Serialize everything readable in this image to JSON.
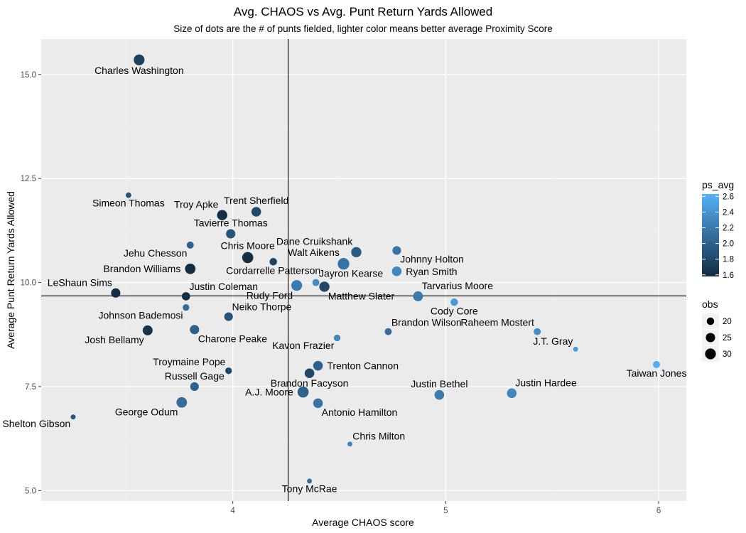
{
  "chart_data": {
    "type": "scatter",
    "title": "Avg. CHAOS vs Avg. Punt Return Yards Allowed",
    "subtitle": "Size of dots are the # of punts fielded, lighter color means better average Proximity Score",
    "xlabel": "Average CHAOS score",
    "ylabel": "Average Punt Return Yards Allowed",
    "xlim": [
      3.1,
      6.13
    ],
    "ylim": [
      4.75,
      15.85
    ],
    "x_ticks": [
      "4",
      "5",
      "6"
    ],
    "x_tick_values": [
      4,
      5,
      6
    ],
    "y_ticks": [
      "5.0",
      "7.5",
      "10.0",
      "12.5",
      "15.0"
    ],
    "y_tick_values": [
      5.0,
      7.5,
      10.0,
      12.5,
      15.0
    ],
    "reference_lines": {
      "x": 4.26,
      "y": 9.68
    },
    "grid": true,
    "colors": {
      "panel": "#ebebeb",
      "grid_major": "#ffffff",
      "grid_minor": "#f3f3f3",
      "color_low": "#132B43",
      "color_high": "#56B1F7"
    },
    "legend": {
      "position": "right",
      "color_title": "ps_avg",
      "color_ticks": [
        "2.6",
        "2.4",
        "2.2",
        "2.0",
        "1.8",
        "1.6"
      ],
      "color_tick_values": [
        2.6,
        2.4,
        2.2,
        2.0,
        1.8,
        1.6
      ],
      "color_range": [
        1.58,
        2.63
      ],
      "size_title": "obs",
      "size_ticks": [
        "20",
        "25",
        "30"
      ],
      "size_tick_values": [
        20,
        25,
        30
      ]
    },
    "points": [
      {
        "name": "Charles Washington",
        "x": 3.56,
        "y": 15.35,
        "obs": 30,
        "ps_avg": 1.75,
        "label_pos": "below"
      },
      {
        "name": "Simeon Thomas",
        "x": 3.51,
        "y": 12.1,
        "obs": 16,
        "ps_avg": 1.9,
        "label_pos": "below"
      },
      {
        "name": "Troy Apke",
        "x": 3.95,
        "y": 11.62,
        "obs": 28,
        "ps_avg": 1.6,
        "label_pos": "above-left"
      },
      {
        "name": "Trent Sherfield",
        "x": 4.11,
        "y": 11.7,
        "obs": 26,
        "ps_avg": 1.8,
        "label_pos": "above"
      },
      {
        "name": "Tavierre Thomas",
        "x": 3.99,
        "y": 11.17,
        "obs": 25,
        "ps_avg": 1.9,
        "label_pos": "above"
      },
      {
        "name": "Jehu Chesson",
        "x": 3.8,
        "y": 10.9,
        "obs": 19,
        "ps_avg": 2.0,
        "label_pos": "below-left"
      },
      {
        "name": "Chris Moore",
        "x": 4.07,
        "y": 10.6,
        "obs": 31,
        "ps_avg": 1.6,
        "label_pos": "above"
      },
      {
        "name": "Cordarrelle Patterson",
        "x": 4.19,
        "y": 10.5,
        "obs": 20,
        "ps_avg": 1.75,
        "label_pos": "below"
      },
      {
        "name": "Brandon Williams",
        "x": 3.8,
        "y": 10.33,
        "obs": 29,
        "ps_avg": 1.6,
        "label_pos": "left"
      },
      {
        "name": "Dane Cruikshank",
        "x": 4.58,
        "y": 10.73,
        "obs": 28,
        "ps_avg": 1.95,
        "label_pos": "above-left"
      },
      {
        "name": "Walt Aikens",
        "x": 4.52,
        "y": 10.45,
        "obs": 33,
        "ps_avg": 2.15,
        "label_pos": "above-left"
      },
      {
        "name": "Johnny Holton",
        "x": 4.77,
        "y": 10.77,
        "obs": 23,
        "ps_avg": 2.15,
        "label_pos": "below-right"
      },
      {
        "name": "Ryan Smith",
        "x": 4.77,
        "y": 10.27,
        "obs": 26,
        "ps_avg": 2.3,
        "label_pos": "right"
      },
      {
        "name": "Jayron Kearse",
        "x": 4.39,
        "y": 10.0,
        "obs": 19,
        "ps_avg": 2.35,
        "label_pos": "above-right"
      },
      {
        "name": "Rudy Ford",
        "x": 4.3,
        "y": 9.93,
        "obs": 30,
        "ps_avg": 2.2,
        "label_pos": "below-left"
      },
      {
        "name": "Matthew Slater",
        "x": 4.43,
        "y": 9.9,
        "obs": 28,
        "ps_avg": 1.8,
        "label_pos": "below-right"
      },
      {
        "name": "LeShaun Sims",
        "x": 3.45,
        "y": 9.75,
        "obs": 25,
        "ps_avg": 1.6,
        "label_pos": "above-left"
      },
      {
        "name": "Justin Coleman",
        "x": 3.78,
        "y": 9.67,
        "obs": 22,
        "ps_avg": 1.6,
        "label_pos": "above-right"
      },
      {
        "name": "Tarvarius Moore",
        "x": 4.87,
        "y": 9.67,
        "obs": 27,
        "ps_avg": 2.2,
        "label_pos": "above-right"
      },
      {
        "name": "Johnson Bademosi",
        "x": 3.78,
        "y": 9.4,
        "obs": 18,
        "ps_avg": 2.1,
        "label_pos": "below-left"
      },
      {
        "name": "Neiko Thorpe",
        "x": 3.98,
        "y": 9.18,
        "obs": 23,
        "ps_avg": 1.9,
        "label_pos": "above-right"
      },
      {
        "name": "Cody Core",
        "x": 5.04,
        "y": 9.53,
        "obs": 20,
        "ps_avg": 2.45,
        "label_pos": "below"
      },
      {
        "name": "Josh Bellamy",
        "x": 3.6,
        "y": 8.85,
        "obs": 27,
        "ps_avg": 1.65,
        "label_pos": "below-left"
      },
      {
        "name": "Charone Peake",
        "x": 3.82,
        "y": 8.87,
        "obs": 25,
        "ps_avg": 2.0,
        "label_pos": "below-right"
      },
      {
        "name": "Brandon Wilson",
        "x": 4.73,
        "y": 8.82,
        "obs": 19,
        "ps_avg": 2.1,
        "label_pos": "above-right"
      },
      {
        "name": "Raheem Mostert",
        "x": 5.43,
        "y": 8.82,
        "obs": 19,
        "ps_avg": 2.35,
        "label_pos": "above-left"
      },
      {
        "name": "Kavon Frazier",
        "x": 4.49,
        "y": 8.67,
        "obs": 18,
        "ps_avg": 2.3,
        "label_pos": "below-left"
      },
      {
        "name": "J.T. Gray",
        "x": 5.61,
        "y": 8.4,
        "obs": 15,
        "ps_avg": 2.45,
        "label_pos": "above-left"
      },
      {
        "name": "Taiwan Jones",
        "x": 5.99,
        "y": 8.03,
        "obs": 19,
        "ps_avg": 2.6,
        "label_pos": "below"
      },
      {
        "name": "Trenton Cannon",
        "x": 4.4,
        "y": 8.0,
        "obs": 26,
        "ps_avg": 2.0,
        "label_pos": "right"
      },
      {
        "name": "Troymaine Pope",
        "x": 3.98,
        "y": 7.88,
        "obs": 18,
        "ps_avg": 1.8,
        "label_pos": "above-left"
      },
      {
        "name": "Brandon Facyson",
        "x": 4.36,
        "y": 7.82,
        "obs": 26,
        "ps_avg": 1.8,
        "label_pos": "below"
      },
      {
        "name": "Russell Gage",
        "x": 3.82,
        "y": 7.5,
        "obs": 23,
        "ps_avg": 2.0,
        "label_pos": "above"
      },
      {
        "name": "A.J. Moore",
        "x": 4.33,
        "y": 7.37,
        "obs": 31,
        "ps_avg": 2.0,
        "label_pos": "left"
      },
      {
        "name": "Justin Bethel",
        "x": 4.97,
        "y": 7.3,
        "obs": 26,
        "ps_avg": 2.2,
        "label_pos": "above"
      },
      {
        "name": "Justin Hardee",
        "x": 5.31,
        "y": 7.34,
        "obs": 26,
        "ps_avg": 2.3,
        "label_pos": "above-right"
      },
      {
        "name": "George Odum",
        "x": 3.76,
        "y": 7.12,
        "obs": 29,
        "ps_avg": 2.1,
        "label_pos": "below-left"
      },
      {
        "name": "Antonio Hamilton",
        "x": 4.4,
        "y": 7.1,
        "obs": 26,
        "ps_avg": 2.15,
        "label_pos": "below-right"
      },
      {
        "name": "Shelton Gibson",
        "x": 3.25,
        "y": 6.77,
        "obs": 15,
        "ps_avg": 1.9,
        "label_pos": "below-left"
      },
      {
        "name": "Chris Milton",
        "x": 4.55,
        "y": 6.12,
        "obs": 15,
        "ps_avg": 2.3,
        "label_pos": "above-right"
      },
      {
        "name": "Tony McRae",
        "x": 4.36,
        "y": 5.23,
        "obs": 15,
        "ps_avg": 2.1,
        "label_pos": "below"
      }
    ]
  }
}
